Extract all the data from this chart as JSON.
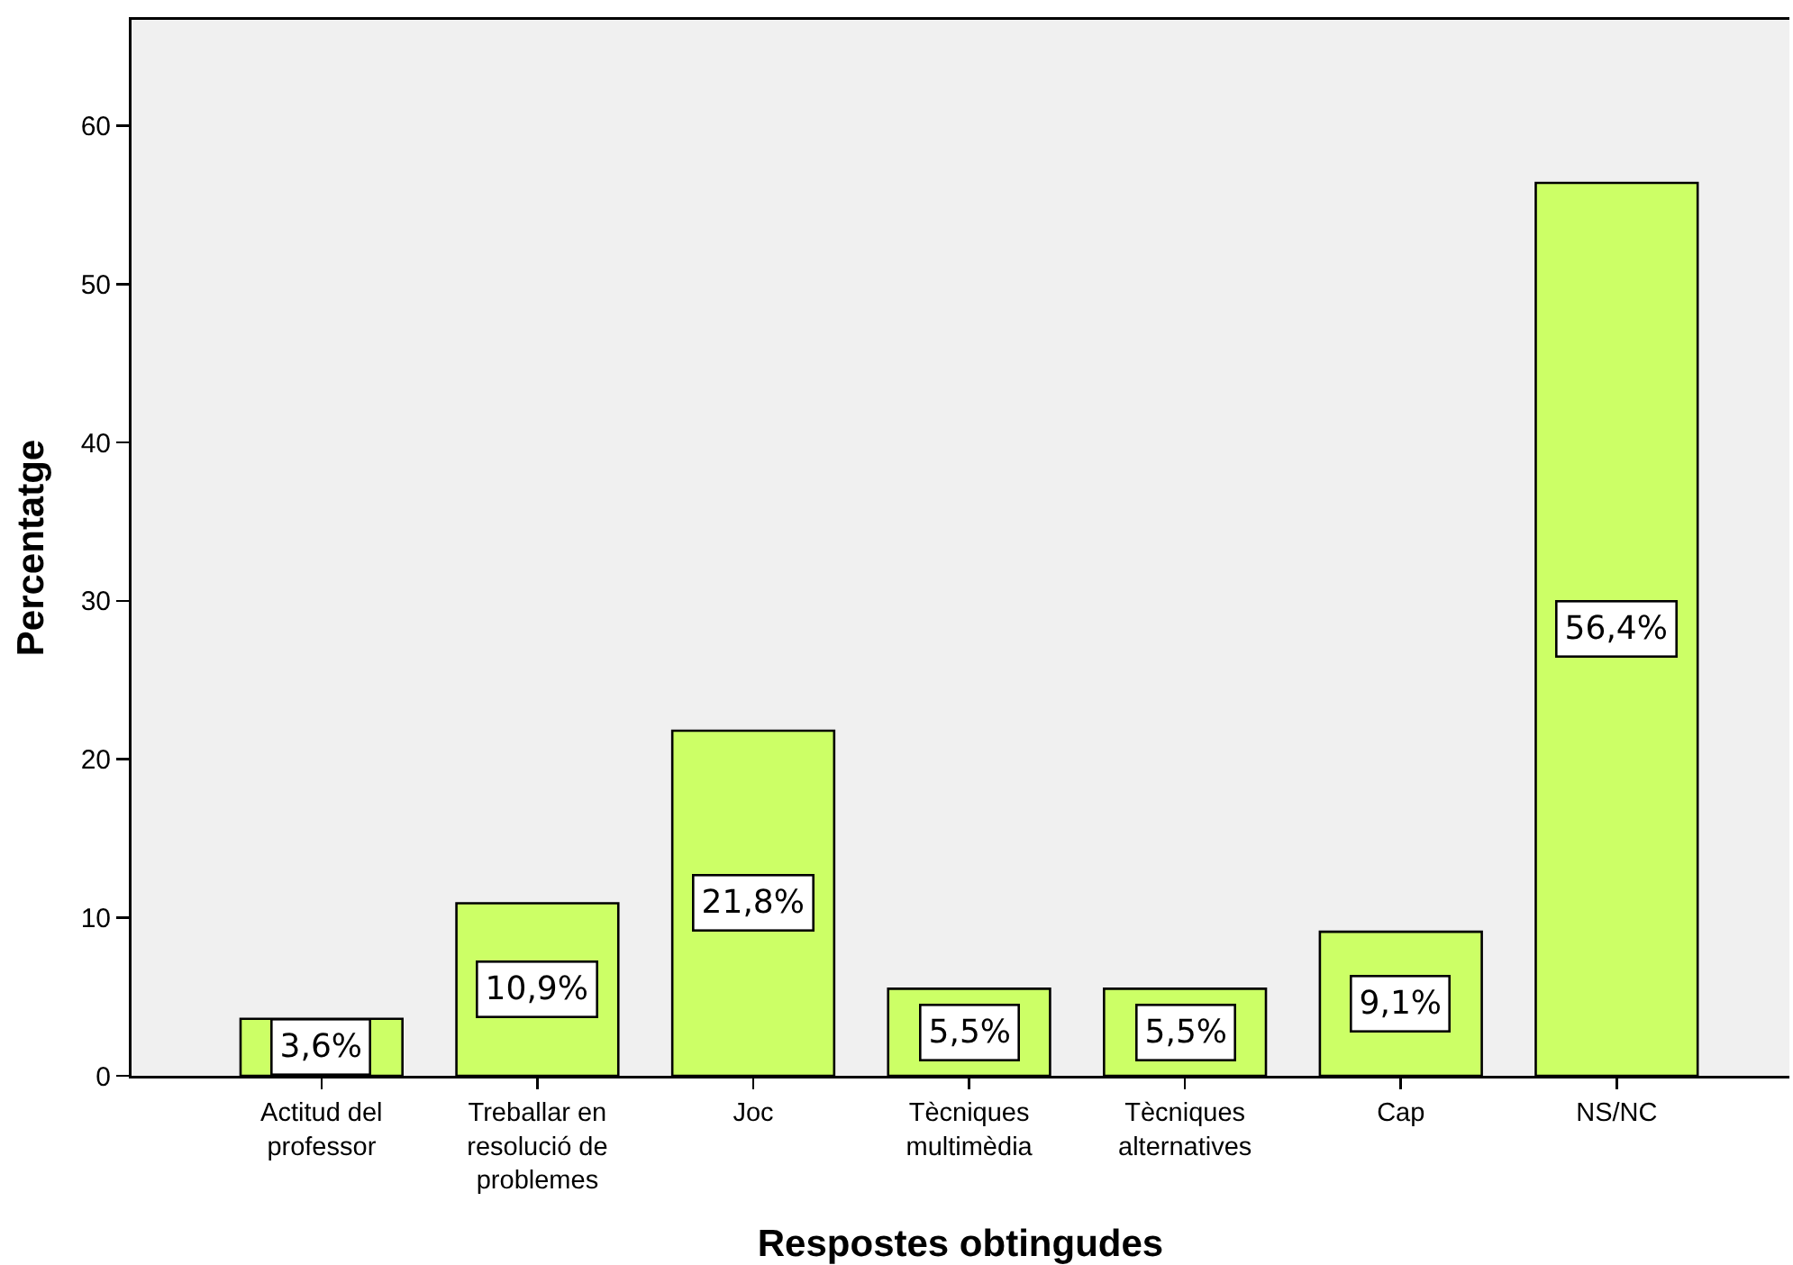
{
  "chart_data": {
    "type": "bar",
    "xlabel": "Respostes obtingudes",
    "ylabel": "Percentatge",
    "categories": [
      "Actitud del professor",
      "Treballar en resolució de problemes",
      "Joc",
      "Tècniques multimèdia",
      "Tècniques alternatives",
      "Cap",
      "NS/NC"
    ],
    "values": [
      3.6,
      10.9,
      21.8,
      5.5,
      5.5,
      9.1,
      56.4
    ],
    "color": "#ccff66",
    "value_labels": [
      "3,6%",
      "10,9%",
      "21,8%",
      "5,5%",
      "5,5%",
      "9,1%",
      "56,4%"
    ],
    "ylim": [
      0,
      66.7
    ],
    "yticks": [
      0,
      10,
      20,
      30,
      40,
      50,
      60
    ],
    "grid": false
  }
}
